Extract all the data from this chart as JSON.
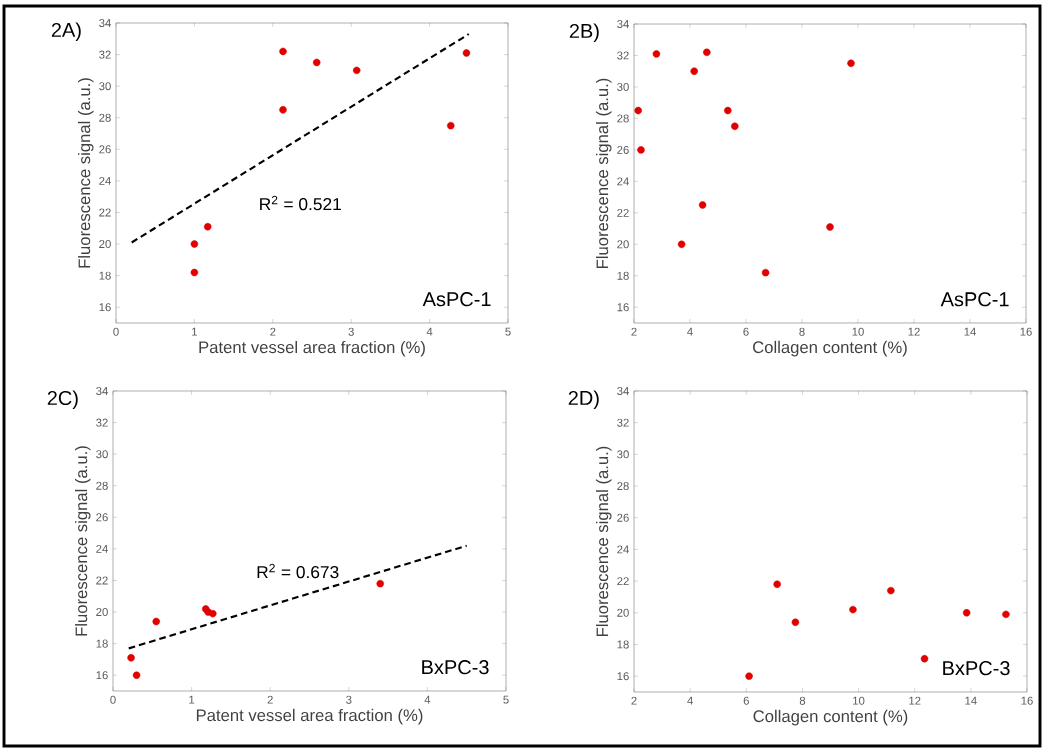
{
  "chart_data": [
    {
      "type": "scatter",
      "title": "2A)",
      "xlabel": "Patent vessel area fraction (%)",
      "ylabel": "Fluorescence signal (a.u.)",
      "xlim": [
        0,
        5
      ],
      "ylim": [
        15,
        34
      ],
      "xticks": [
        0,
        1,
        2,
        3,
        4,
        5
      ],
      "yticks": [
        16,
        18,
        20,
        22,
        24,
        26,
        28,
        30,
        32,
        34
      ],
      "grid": false,
      "annotations": [
        "R$^{2}$ = 0.521",
        "AsPC-1"
      ],
      "series": [
        {
          "type": "scatter",
          "color": "#e00000",
          "marker": "circle",
          "x": [
            1.0,
            1.0,
            1.17,
            2.13,
            2.13,
            2.56,
            3.07,
            4.27,
            4.47
          ],
          "values": [
            20.0,
            18.2,
            21.1,
            32.2,
            28.5,
            31.5,
            31.0,
            27.5,
            32.1
          ]
        },
        {
          "type": "line",
          "color": "#000000",
          "line_style": "dashed",
          "marker": "none",
          "x": [
            0.2,
            4.5
          ],
          "values": [
            20.1,
            33.3
          ]
        }
      ]
    },
    {
      "type": "scatter",
      "title": "2B)",
      "xlabel": "Collagen content (%)",
      "ylabel": "Fluorescence signal (a.u.)",
      "xlim": [
        2,
        16
      ],
      "ylim": [
        15,
        34
      ],
      "xticks": [
        2,
        4,
        6,
        8,
        10,
        12,
        14,
        16
      ],
      "yticks": [
        16,
        18,
        20,
        22,
        24,
        26,
        28,
        30,
        32,
        34
      ],
      "grid": false,
      "annotations": [
        "AsPC-1"
      ],
      "series": [
        {
          "type": "scatter",
          "color": "#e00000",
          "marker": "circle",
          "x": [
            2.15,
            2.25,
            2.8,
            4.15,
            4.6,
            5.35,
            5.6,
            4.45,
            3.7,
            6.7,
            9.0,
            9.75
          ],
          "values": [
            28.5,
            26.0,
            32.1,
            31.0,
            32.2,
            28.5,
            27.5,
            22.5,
            20.0,
            18.2,
            21.1,
            31.5
          ]
        }
      ]
    },
    {
      "type": "scatter",
      "title": "2C)",
      "xlabel": "Patent vessel area fraction (%)",
      "ylabel": "Fluorescence signal (a.u.)",
      "xlim": [
        0,
        5
      ],
      "ylim": [
        15,
        34
      ],
      "xticks": [
        0,
        1,
        2,
        3,
        4,
        5
      ],
      "yticks": [
        16,
        18,
        20,
        22,
        24,
        26,
        28,
        30,
        32,
        34
      ],
      "grid": false,
      "annotations": [
        "R$^{2}$ = 0.673",
        "BxPC-3"
      ],
      "series": [
        {
          "type": "scatter",
          "color": "#e00000",
          "marker": "circle",
          "x": [
            0.23,
            0.3,
            0.55,
            1.18,
            1.21,
            1.27,
            3.4
          ],
          "values": [
            17.1,
            16.0,
            19.4,
            20.2,
            20.0,
            19.9,
            21.8
          ]
        },
        {
          "type": "line",
          "color": "#000000",
          "line_style": "dashed",
          "marker": "none",
          "x": [
            0.2,
            4.5
          ],
          "values": [
            17.7,
            24.2
          ]
        }
      ]
    },
    {
      "type": "scatter",
      "title": "2D)",
      "xlabel": "Collagen content (%)",
      "ylabel": "Fluorescence signal (a.u.)",
      "xlim": [
        2,
        16
      ],
      "ylim": [
        15,
        34
      ],
      "xticks": [
        2,
        4,
        6,
        8,
        10,
        12,
        14,
        16
      ],
      "yticks": [
        16,
        18,
        20,
        22,
        24,
        26,
        28,
        30,
        32,
        34
      ],
      "grid": false,
      "annotations": [
        "BxPC-3"
      ],
      "series": [
        {
          "type": "scatter",
          "color": "#e00000",
          "marker": "circle",
          "x": [
            6.1,
            7.1,
            7.75,
            9.8,
            11.15,
            12.35,
            13.85,
            15.25
          ],
          "values": [
            16.0,
            21.8,
            19.4,
            20.2,
            21.4,
            17.1,
            20.0,
            19.9
          ]
        }
      ]
    }
  ]
}
